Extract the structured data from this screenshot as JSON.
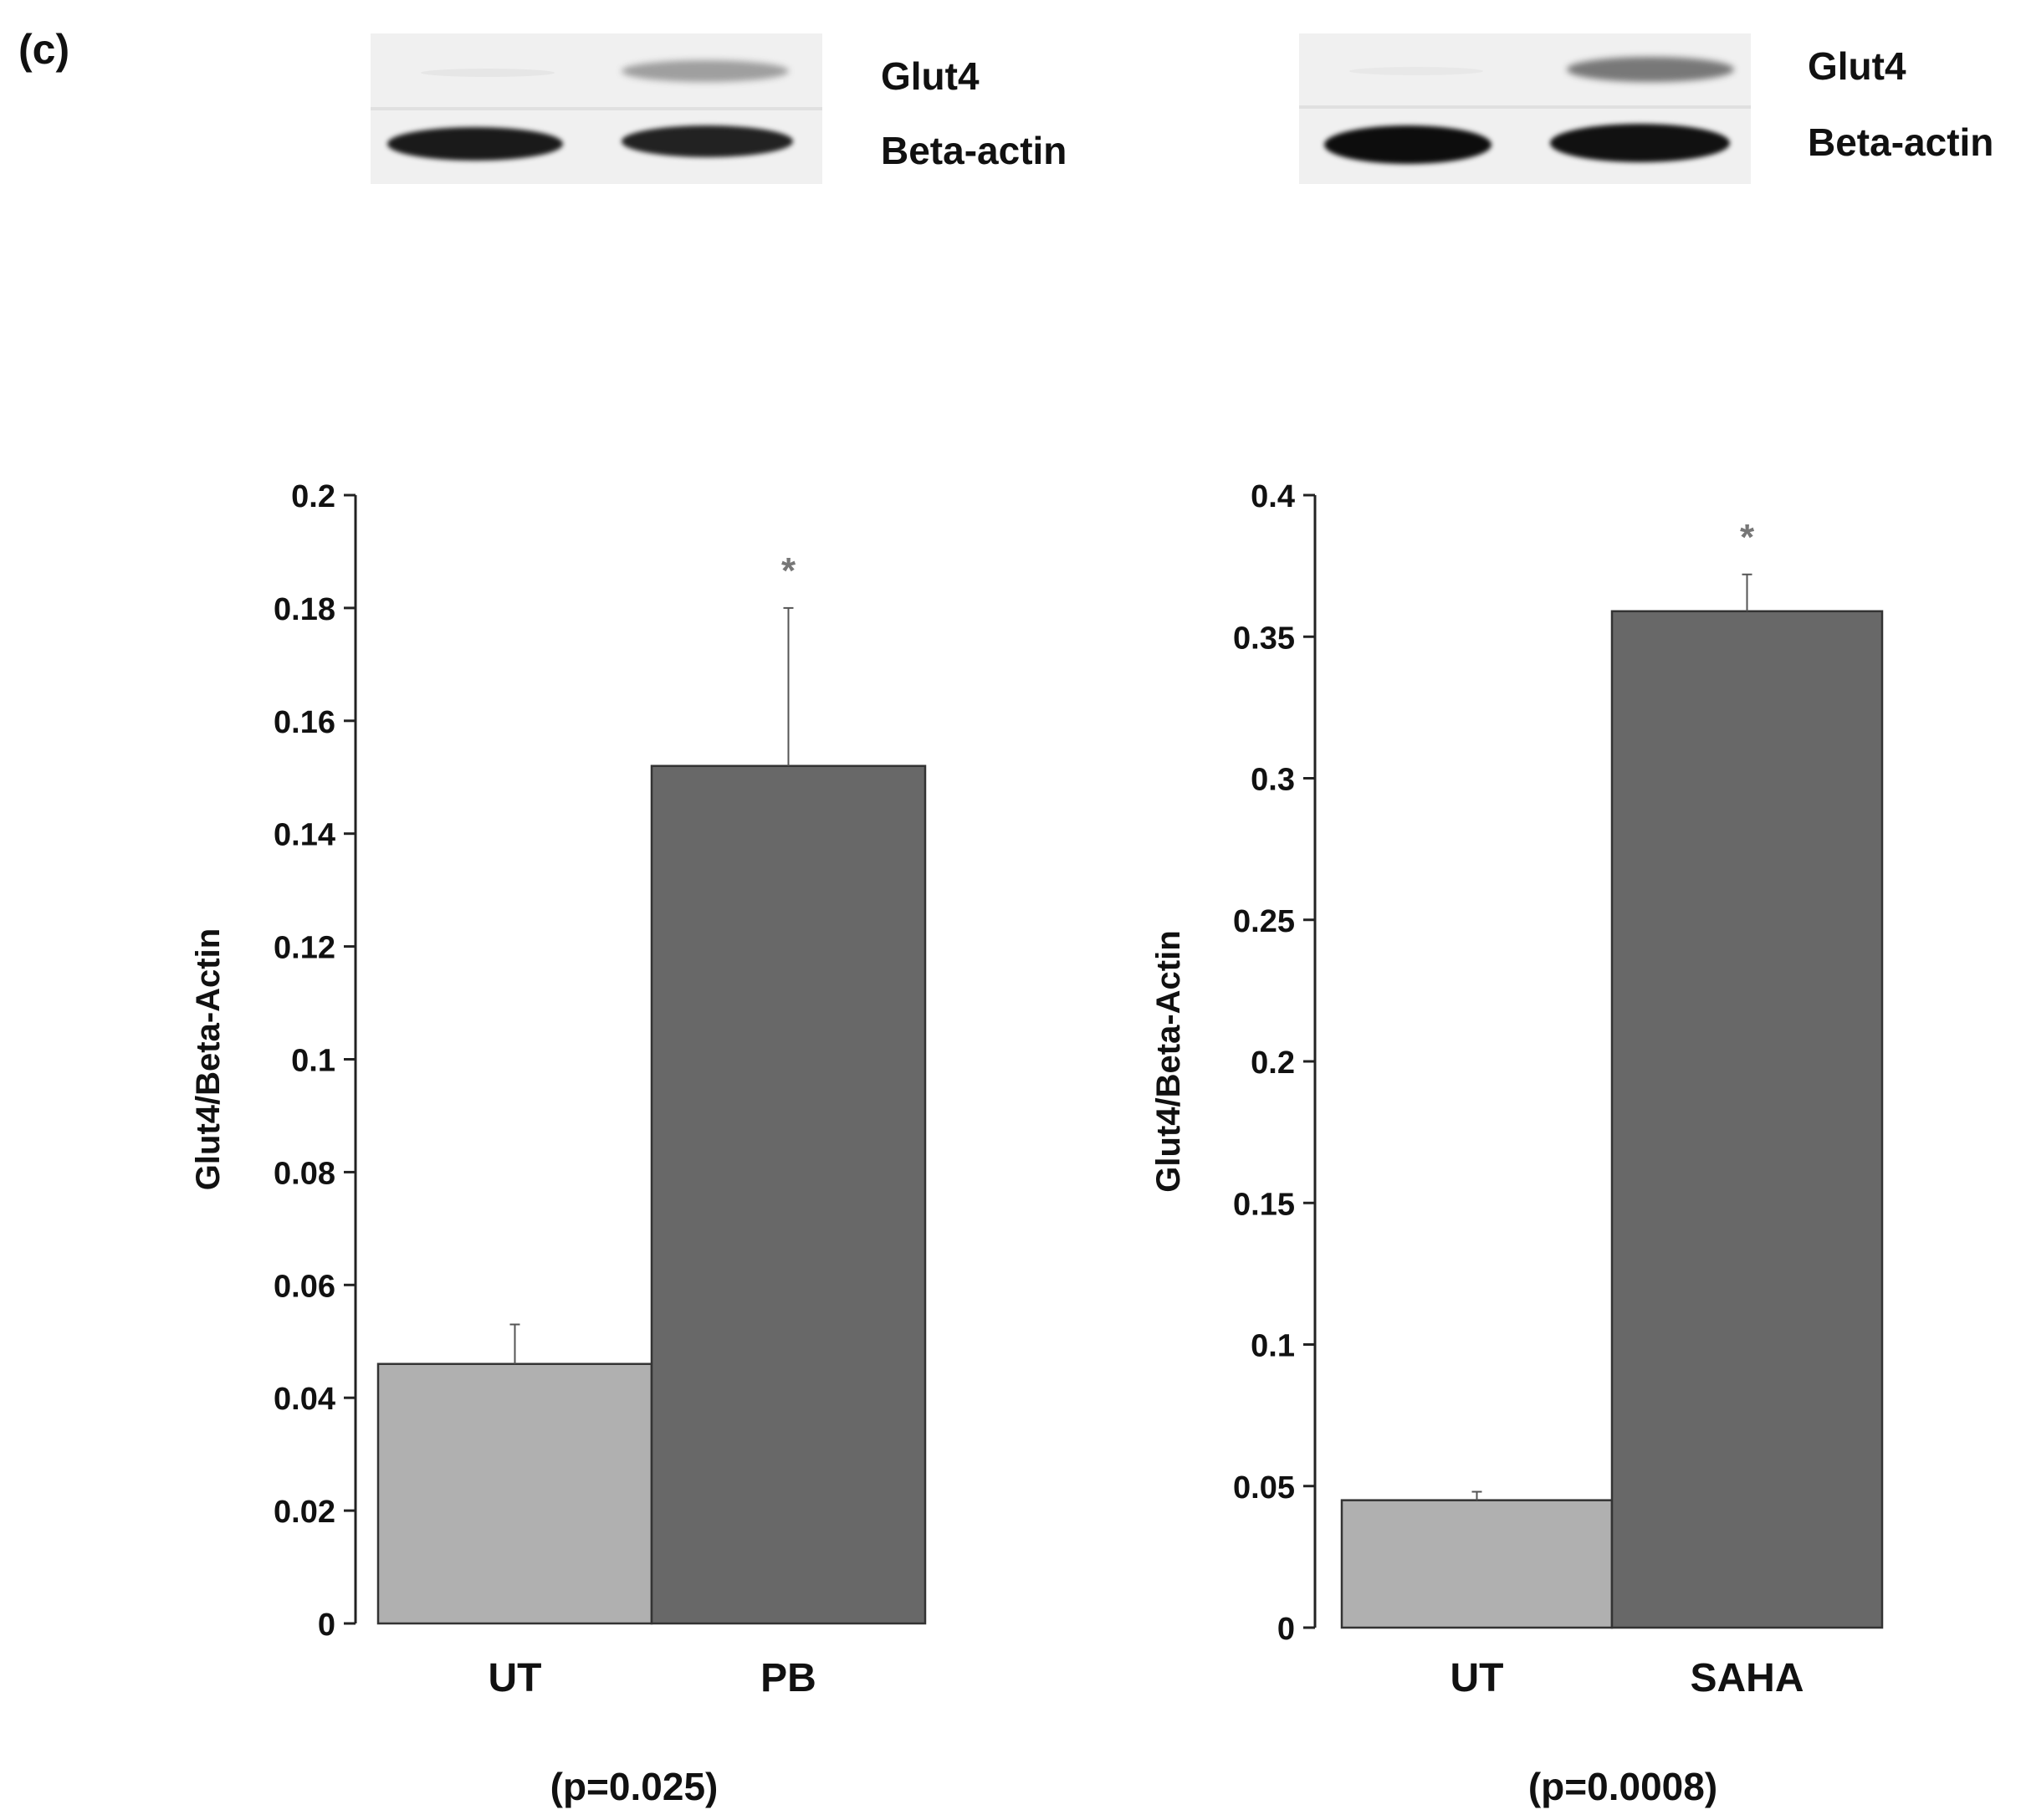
{
  "panel_label": "(c)",
  "blots": [
    {
      "labels": [
        "Glut4",
        "Beta-actin"
      ]
    },
    {
      "labels": [
        "Glut4",
        "Beta-actin"
      ]
    }
  ],
  "colors": {
    "control_bar": "#b0b0b0",
    "treated_bar": "#686868",
    "axis": "#222222",
    "error": "#555555"
  },
  "chart_data": [
    {
      "type": "bar",
      "categories": [
        "UT",
        "PB"
      ],
      "values": [
        0.046,
        0.152
      ],
      "errors": [
        0.007,
        0.028
      ],
      "significance": [
        "",
        "*"
      ],
      "ylabel": "Glut4/Beta-Actin",
      "ylim": [
        0,
        0.2
      ],
      "yticks": [
        0,
        0.02,
        0.04,
        0.06,
        0.08,
        0.1,
        0.12,
        0.14,
        0.16,
        0.18,
        0.2
      ],
      "ytick_labels": [
        "0",
        "0.02",
        "0.04",
        "0.06",
        "0.08",
        "0.1",
        "0.12",
        "0.14",
        "0.16",
        "0.18",
        "0.2"
      ],
      "pvalue_text": "(p=0.025)"
    },
    {
      "type": "bar",
      "categories": [
        "UT",
        "SAHA"
      ],
      "values": [
        0.045,
        0.359
      ],
      "errors": [
        0.003,
        0.013
      ],
      "significance": [
        "",
        "*"
      ],
      "ylabel": "Glut4/Beta-Actin",
      "ylim": [
        0,
        0.4
      ],
      "yticks": [
        0,
        0.05,
        0.1,
        0.15,
        0.2,
        0.25,
        0.3,
        0.35,
        0.4
      ],
      "ytick_labels": [
        "0",
        "0.05",
        "0.1",
        "0.15",
        "0.2",
        "0.25",
        "0.3",
        "0.35",
        "0.4"
      ],
      "pvalue_text": "(p=0.0008)"
    }
  ]
}
